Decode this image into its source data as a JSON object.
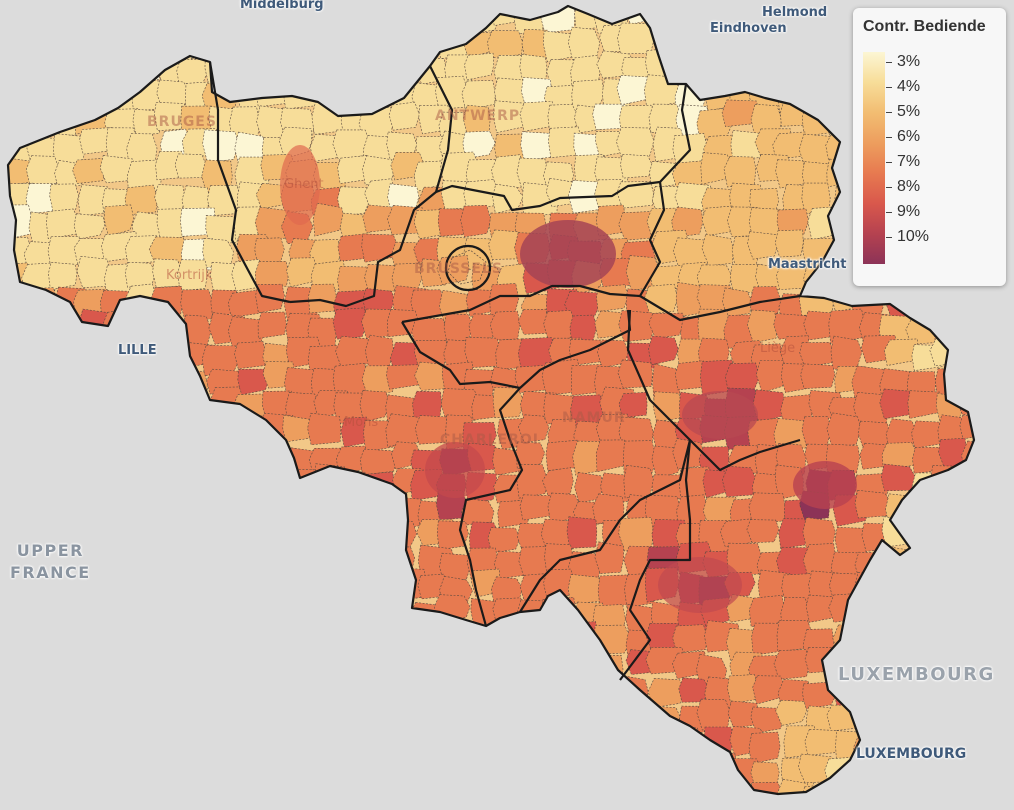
{
  "legend": {
    "title": "Contr. Bediende",
    "labels": [
      "3%",
      "4%",
      "5%",
      "6%",
      "7%",
      "8%",
      "9%",
      "10%"
    ],
    "colors": [
      "#fcf6d4",
      "#f7dd99",
      "#f2bd72",
      "#ed9e5e",
      "#e77a50",
      "#d9584c",
      "#b54250",
      "#8c3357"
    ]
  },
  "place_labels": {
    "middelburg": "Middelburg",
    "helmond": "Helmond",
    "eindhoven": "Eindhoven",
    "lille": "LILLE",
    "maastricht": "Maastricht",
    "upper_france": "UPPER\nFRANCE",
    "luxembourg_country": "LUXEMBOURG",
    "luxembourg_city": "LUXEMBOURG",
    "bruges": "BRUGES",
    "antwerp": "ANTWERP",
    "ghent": "Ghent",
    "kortrijk": "Kortrijk",
    "brussels": "BRUSSELS",
    "mons": "Mons",
    "charleroi": "CHARLEROI",
    "namur": "NAMUR",
    "liege": "Liège"
  },
  "colors": {
    "background": "#dcdcdc",
    "province_border": "#1a1a1a",
    "municipality_border": "#5a4a40"
  }
}
